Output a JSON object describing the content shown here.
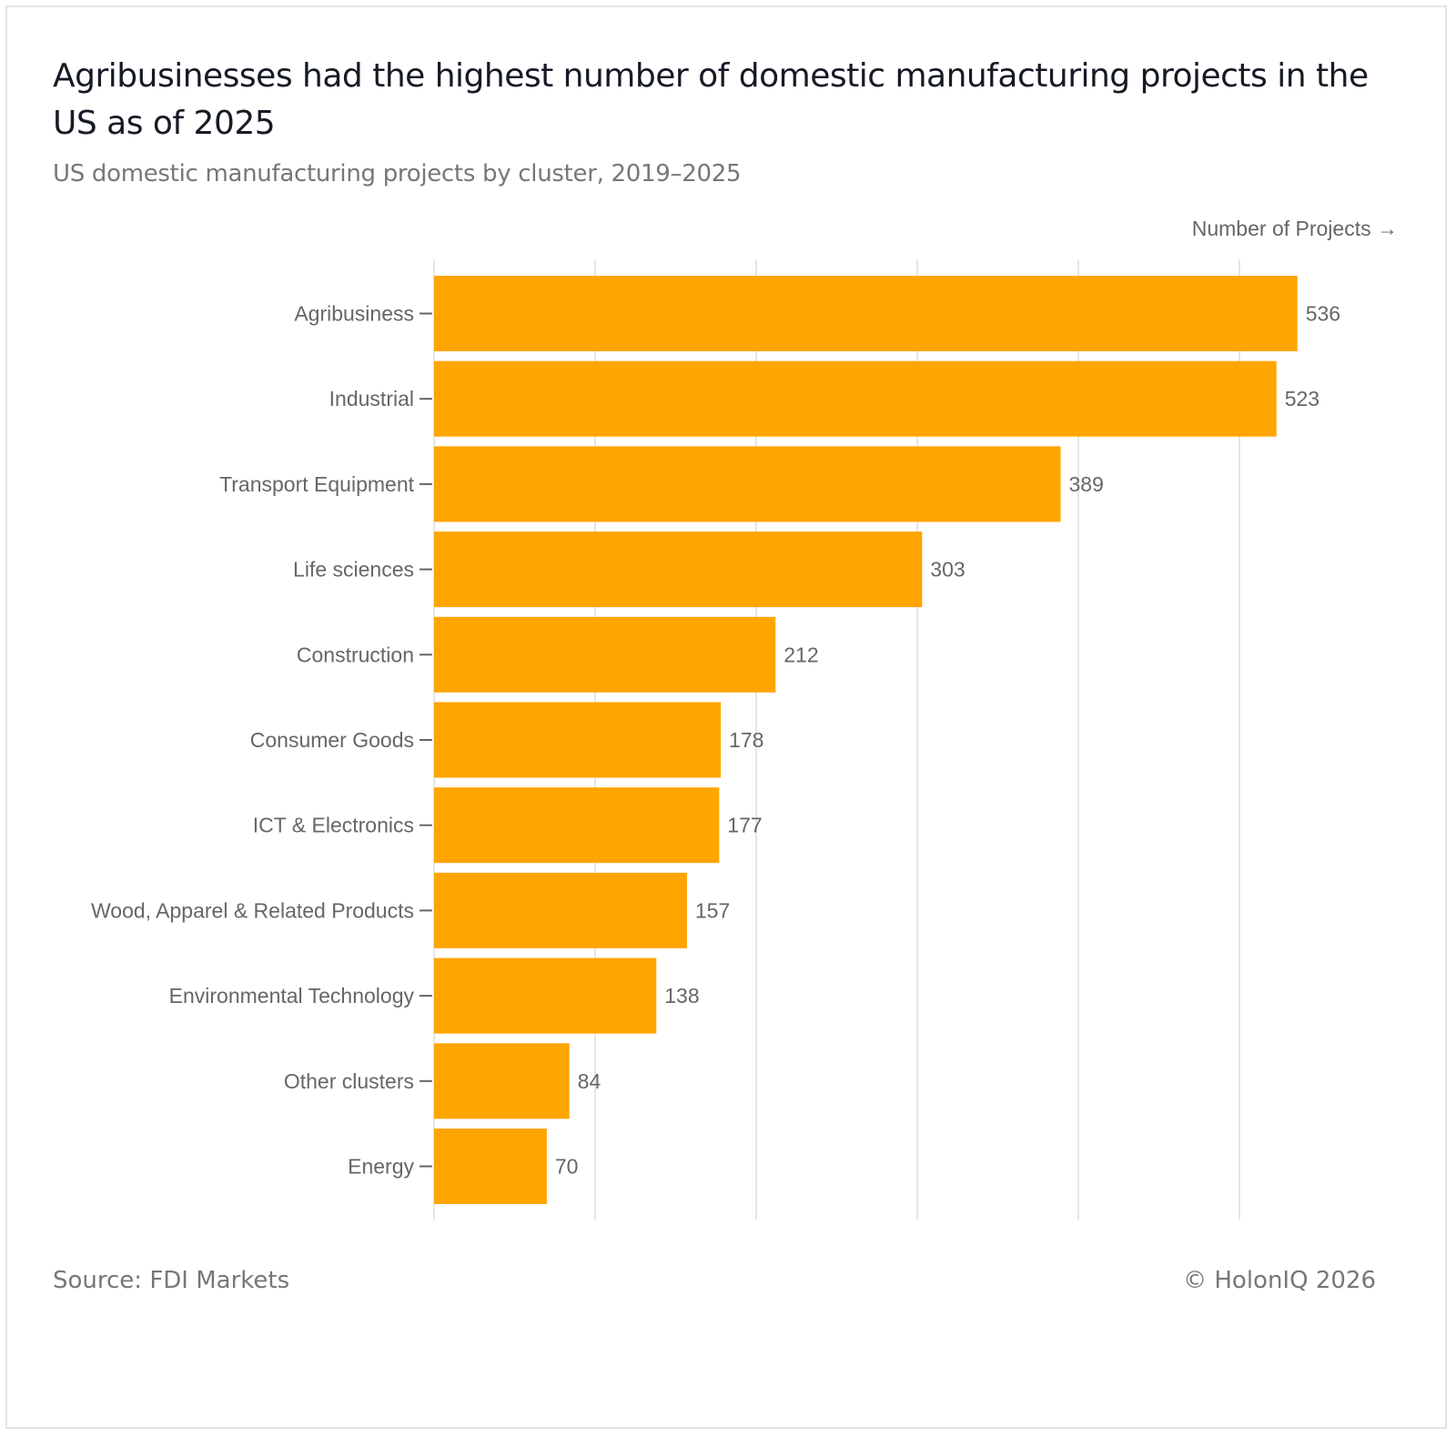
{
  "header": {
    "title": "Agribusinesses had the highest number of domestic manufacturing projects in the US as of 2025",
    "subtitle": "US domestic manufacturing projects by cluster, 2019–2025"
  },
  "footer": {
    "source": "Source: FDI Markets",
    "copyright": "© HolonIQ 2026"
  },
  "colors": {
    "bar": "#FFA500",
    "grid": "#e6e6e6",
    "text": "#666666"
  },
  "chart_data": {
    "type": "bar",
    "orientation": "horizontal",
    "title": "Agribusinesses had the highest number of domestic manufacturing projects in the US as of 2025",
    "subtitle": "US domestic manufacturing projects by cluster, 2019–2025",
    "xlabel": "Number of Projects →",
    "ylabel": "",
    "categories": [
      "Agribusiness",
      "Industrial",
      "Transport Equipment",
      "Life sciences",
      "Construction",
      "Consumer Goods",
      "ICT & Electronics",
      "Wood, Apparel & Related Products",
      "Environmental Technology",
      "Other clusters",
      "Energy"
    ],
    "values": [
      536,
      523,
      389,
      303,
      212,
      178,
      177,
      157,
      138,
      84,
      70
    ],
    "xlim": [
      0,
      560
    ],
    "grid_step": 100,
    "grid": true,
    "tick_labels_shown": false,
    "data_labels": true
  }
}
